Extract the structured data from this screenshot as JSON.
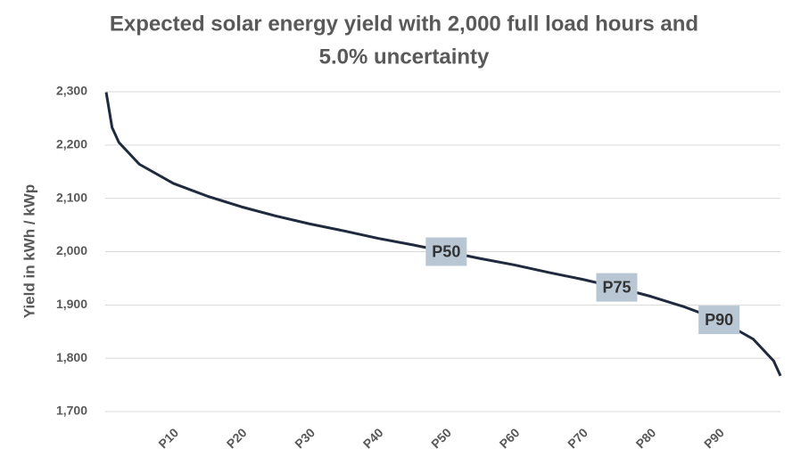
{
  "chart_data": {
    "type": "line",
    "title": [
      "Expected solar energy yield with 2,000 full load hours and",
      "5.0% uncertainty"
    ],
    "y_label": "Yield in kWh / kWp",
    "x": [
      0.14,
      1,
      2,
      5,
      10,
      15,
      20,
      25,
      30,
      35,
      40,
      45,
      50,
      55,
      60,
      65,
      70,
      75,
      80,
      85,
      90,
      95,
      98,
      99
    ],
    "series": [
      {
        "name": "Expected yield",
        "color": "#1f2a3c",
        "values": [
          2299,
          2233,
          2205,
          2164,
          2128,
          2104,
          2084,
          2067,
          2052,
          2039,
          2025,
          2013,
          2000,
          1987,
          1975,
          1961,
          1948,
          1933,
          1916,
          1896,
          1872,
          1836,
          1795,
          1767
        ]
      }
    ],
    "xlim": [
      0,
      99
    ],
    "xticks": [
      {
        "value": 10,
        "label": "P10"
      },
      {
        "value": 20,
        "label": "P20"
      },
      {
        "value": 30,
        "label": "P30"
      },
      {
        "value": 40,
        "label": "P40"
      },
      {
        "value": 50,
        "label": "P50"
      },
      {
        "value": 60,
        "label": "P60"
      },
      {
        "value": 70,
        "label": "P70"
      },
      {
        "value": 80,
        "label": "P80"
      },
      {
        "value": 90,
        "label": "P90"
      }
    ],
    "ylim": [
      1700,
      2300
    ],
    "yticks": [
      {
        "value": 1700,
        "label": "1,700"
      },
      {
        "value": 1800,
        "label": "1,800"
      },
      {
        "value": 1900,
        "label": "1,900"
      },
      {
        "value": 2000,
        "label": "2,000"
      },
      {
        "value": 2100,
        "label": "2,100"
      },
      {
        "value": 2200,
        "label": "2,200"
      },
      {
        "value": 2300,
        "label": "2,300"
      }
    ],
    "grid": true,
    "annotations": [
      {
        "text": "P50",
        "x": 50,
        "y": 2000
      },
      {
        "text": "P75",
        "x": 75,
        "y": 1933
      },
      {
        "text": "P90",
        "x": 90,
        "y": 1872
      }
    ],
    "annotation_color": "#b8c7d3"
  }
}
